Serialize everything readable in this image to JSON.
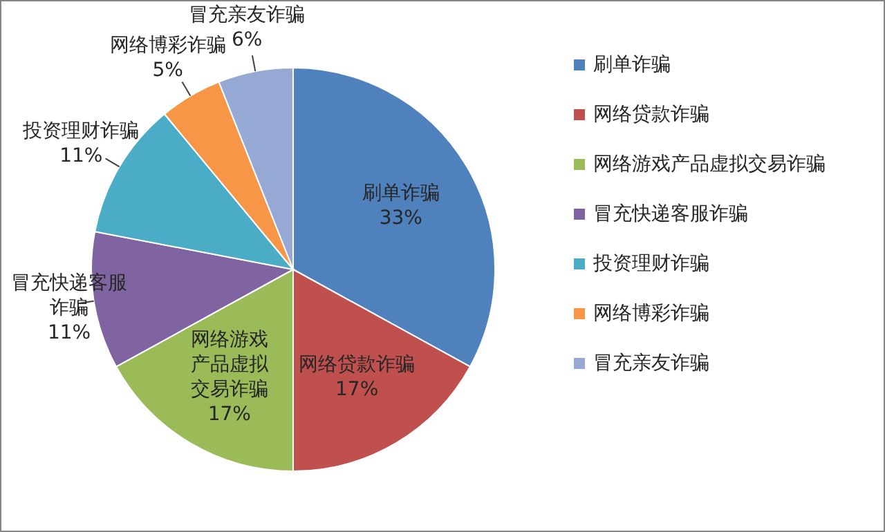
{
  "chart_data": {
    "type": "pie",
    "categories": [
      "刷单诈骗",
      "网络贷款诈骗",
      "网络游戏产品虚拟交易诈骗",
      "冒充快递客服诈骗",
      "投资理财诈骗",
      "网络博彩诈骗",
      "冒充亲友诈骗"
    ],
    "values": [
      33,
      17,
      17,
      11,
      11,
      5,
      6
    ],
    "value_labels": [
      "33%",
      "17%",
      "17%",
      "11%",
      "11%",
      "5%",
      "6%"
    ],
    "colors": [
      "#4f81bd",
      "#c0504d",
      "#9bbb59",
      "#8064a2",
      "#4bacc6",
      "#f79646",
      "#95a9d4"
    ],
    "legend": "right"
  }
}
